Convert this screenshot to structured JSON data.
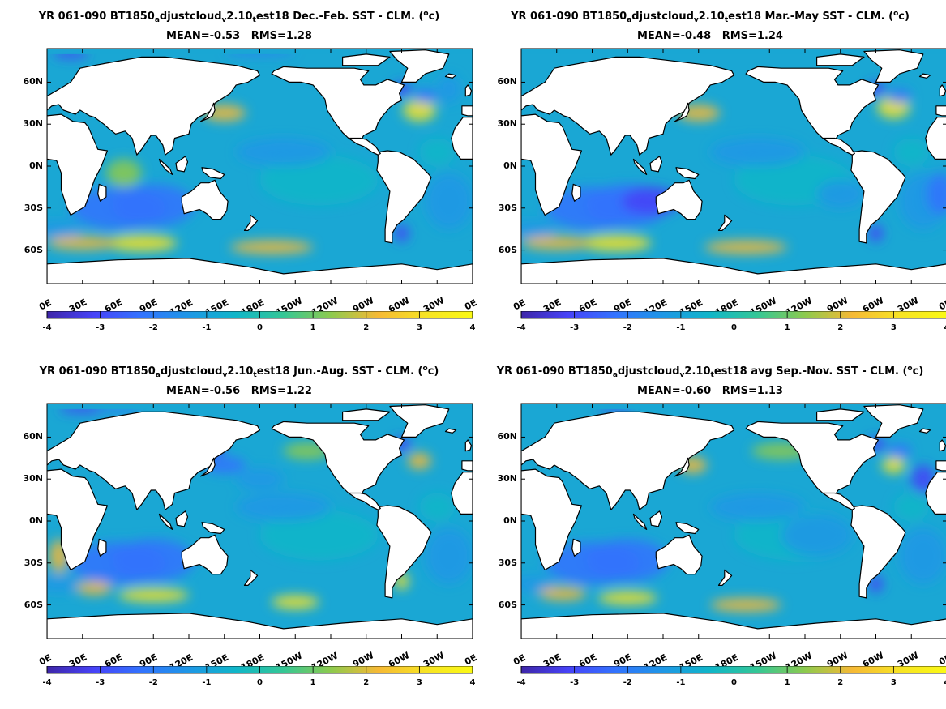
{
  "panels": [
    {
      "id": "djf",
      "title_parts": [
        "YR 061-090 BT1850",
        "a",
        "djustcloud",
        "v",
        "2.10",
        "t",
        "est18  Dec.-Feb. SST - CLM. (",
        "o",
        "c)"
      ],
      "mean_label": "MEAN=-0.53",
      "rms_label": "RMS=1.28"
    },
    {
      "id": "mam",
      "title_parts": [
        "YR 061-090 BT1850",
        "a",
        "djustcloud",
        "v",
        "2.10",
        "t",
        "est18 Mar.-May SST - CLM. (",
        "o",
        "c)"
      ],
      "mean_label": "MEAN=-0.48",
      "rms_label": "RMS=1.24"
    },
    {
      "id": "jja",
      "title_parts": [
        "YR 061-090 BT1850",
        "a",
        "djustcloud",
        "v",
        "2.10",
        "t",
        "est18 Jun.-Aug. SST - CLM. (",
        "o",
        "c)"
      ],
      "mean_label": "MEAN=-0.56",
      "rms_label": "RMS=1.22"
    },
    {
      "id": "son",
      "title_parts": [
        "YR 061-090 BT1850",
        "a",
        "djustcloud",
        "v",
        "2.10",
        "t",
        "est18 avg Sep.-Nov. SST - CLM. (",
        "o",
        "c)"
      ],
      "mean_label": "MEAN=-0.60",
      "rms_label": "RMS=1.13"
    }
  ],
  "lat_labels": [
    "60N",
    "30N",
    "0N",
    "30S",
    "60S"
  ],
  "lon_labels": [
    "0E",
    "30E",
    "60E",
    "90E",
    "120E",
    "150E",
    "180E",
    "150W",
    "120W",
    "90W",
    "60W",
    "30W",
    "0E"
  ],
  "colorbar": {
    "ticks": [
      "-4",
      "-3",
      "-2",
      "-1",
      "0",
      "1",
      "2",
      "3",
      "4"
    ],
    "range": [
      -4,
      4
    ],
    "colors": [
      "#3e26a8",
      "#4743f8",
      "#3273fe",
      "#1e97e6",
      "#10b6c8",
      "#35c795",
      "#8dca4e",
      "#f6b935",
      "#f7e324",
      "#faf914"
    ]
  },
  "ocean_background": "#1aa7d4",
  "land_color": "#ffffff"
}
